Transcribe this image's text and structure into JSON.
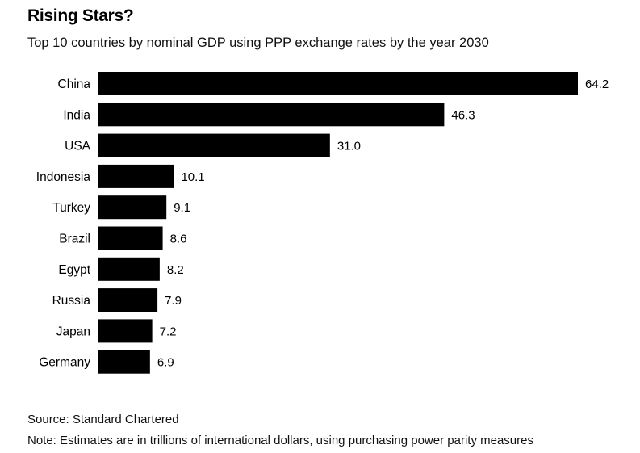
{
  "chart_data": {
    "type": "bar",
    "orientation": "horizontal",
    "title": "Rising Stars?",
    "subtitle": "Top 10 countries by nominal GDP using PPP exchange rates by the year 2030",
    "categories": [
      "China",
      "India",
      "USA",
      "Indonesia",
      "Turkey",
      "Brazil",
      "Egypt",
      "Russia",
      "Japan",
      "Germany"
    ],
    "values": [
      64.2,
      46.3,
      31.0,
      10.1,
      9.1,
      8.6,
      8.2,
      7.9,
      7.2,
      6.9
    ],
    "value_labels": [
      "64.2",
      "46.3",
      "31.0",
      "10.1",
      "9.1",
      "8.6",
      "8.2",
      "7.9",
      "7.2",
      "6.9"
    ],
    "bar_color": "#000000",
    "xlim": [
      0,
      64.2
    ],
    "grid": false,
    "legend": "none"
  },
  "footer": {
    "source": "Source: Standard Chartered",
    "note": "Note: Estimates are in trillions of international dollars, using purchasing power parity measures"
  }
}
